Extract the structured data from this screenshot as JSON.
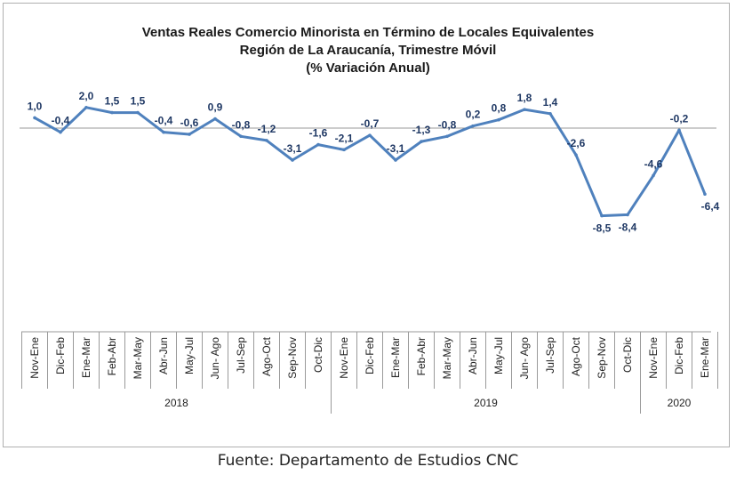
{
  "chart_data": {
    "type": "line",
    "title_lines": [
      "Ventas Reales Comercio Minorista  en Término de Locales Equivalentes",
      "Región de La Araucanía, Trimestre Móvil",
      "(% Variación Anual)"
    ],
    "categories": [
      "Nov-Ene",
      "Dic-Feb",
      "Ene-Mar",
      "Feb-Abr",
      "Mar-May",
      "Abr-Jun",
      "May-Jul",
      "Jun- Ago",
      "Jul-Sep",
      "Ago-Oct",
      "Sep-Nov",
      "Oct-Dic",
      "Nov-Ene",
      "Dic-Feb",
      "Ene-Mar",
      "Feb-Abr",
      "Mar-May",
      "Abr-Jun",
      "May-Jul",
      "Jun- Ago",
      "Jul-Sep",
      "Ago-Oct",
      "Sep-Nov",
      "Oct-Dic",
      "Nov-Ene",
      "Dic-Feb",
      "Ene-Mar"
    ],
    "values": [
      1.0,
      -0.4,
      2.0,
      1.5,
      1.5,
      -0.4,
      -0.6,
      0.9,
      -0.8,
      -1.2,
      -3.1,
      -1.6,
      -2.1,
      -0.7,
      -3.1,
      -1.3,
      -0.8,
      0.2,
      0.8,
      1.8,
      1.4,
      -2.6,
      -8.5,
      -8.4,
      -4.6,
      -0.2,
      -6.4
    ],
    "data_labels": [
      "1,0",
      "-0,4",
      "2,0",
      "1,5",
      "1,5",
      "-0,4",
      "-0,6",
      "0,9",
      "-0,8",
      "-1,2",
      "-3,1",
      "-1,6",
      "-2,1",
      "-0,7",
      "-3,1",
      "-1,3",
      "-0,8",
      "0,2",
      "0,8",
      "1,8",
      "1,4",
      "-2,6",
      "-8,5",
      "-8,4",
      "-4,6",
      "-0,2",
      "-6,4"
    ],
    "year_groups": [
      {
        "label": "2018",
        "count": 12
      },
      {
        "label": "2019",
        "count": 12
      },
      {
        "label": "2020",
        "count": 3
      }
    ],
    "line_color": "#4f81bd",
    "label_color": "#1f3864",
    "grid": false,
    "legend": "none"
  },
  "source": "Fuente: Departamento de Estudios CNC"
}
